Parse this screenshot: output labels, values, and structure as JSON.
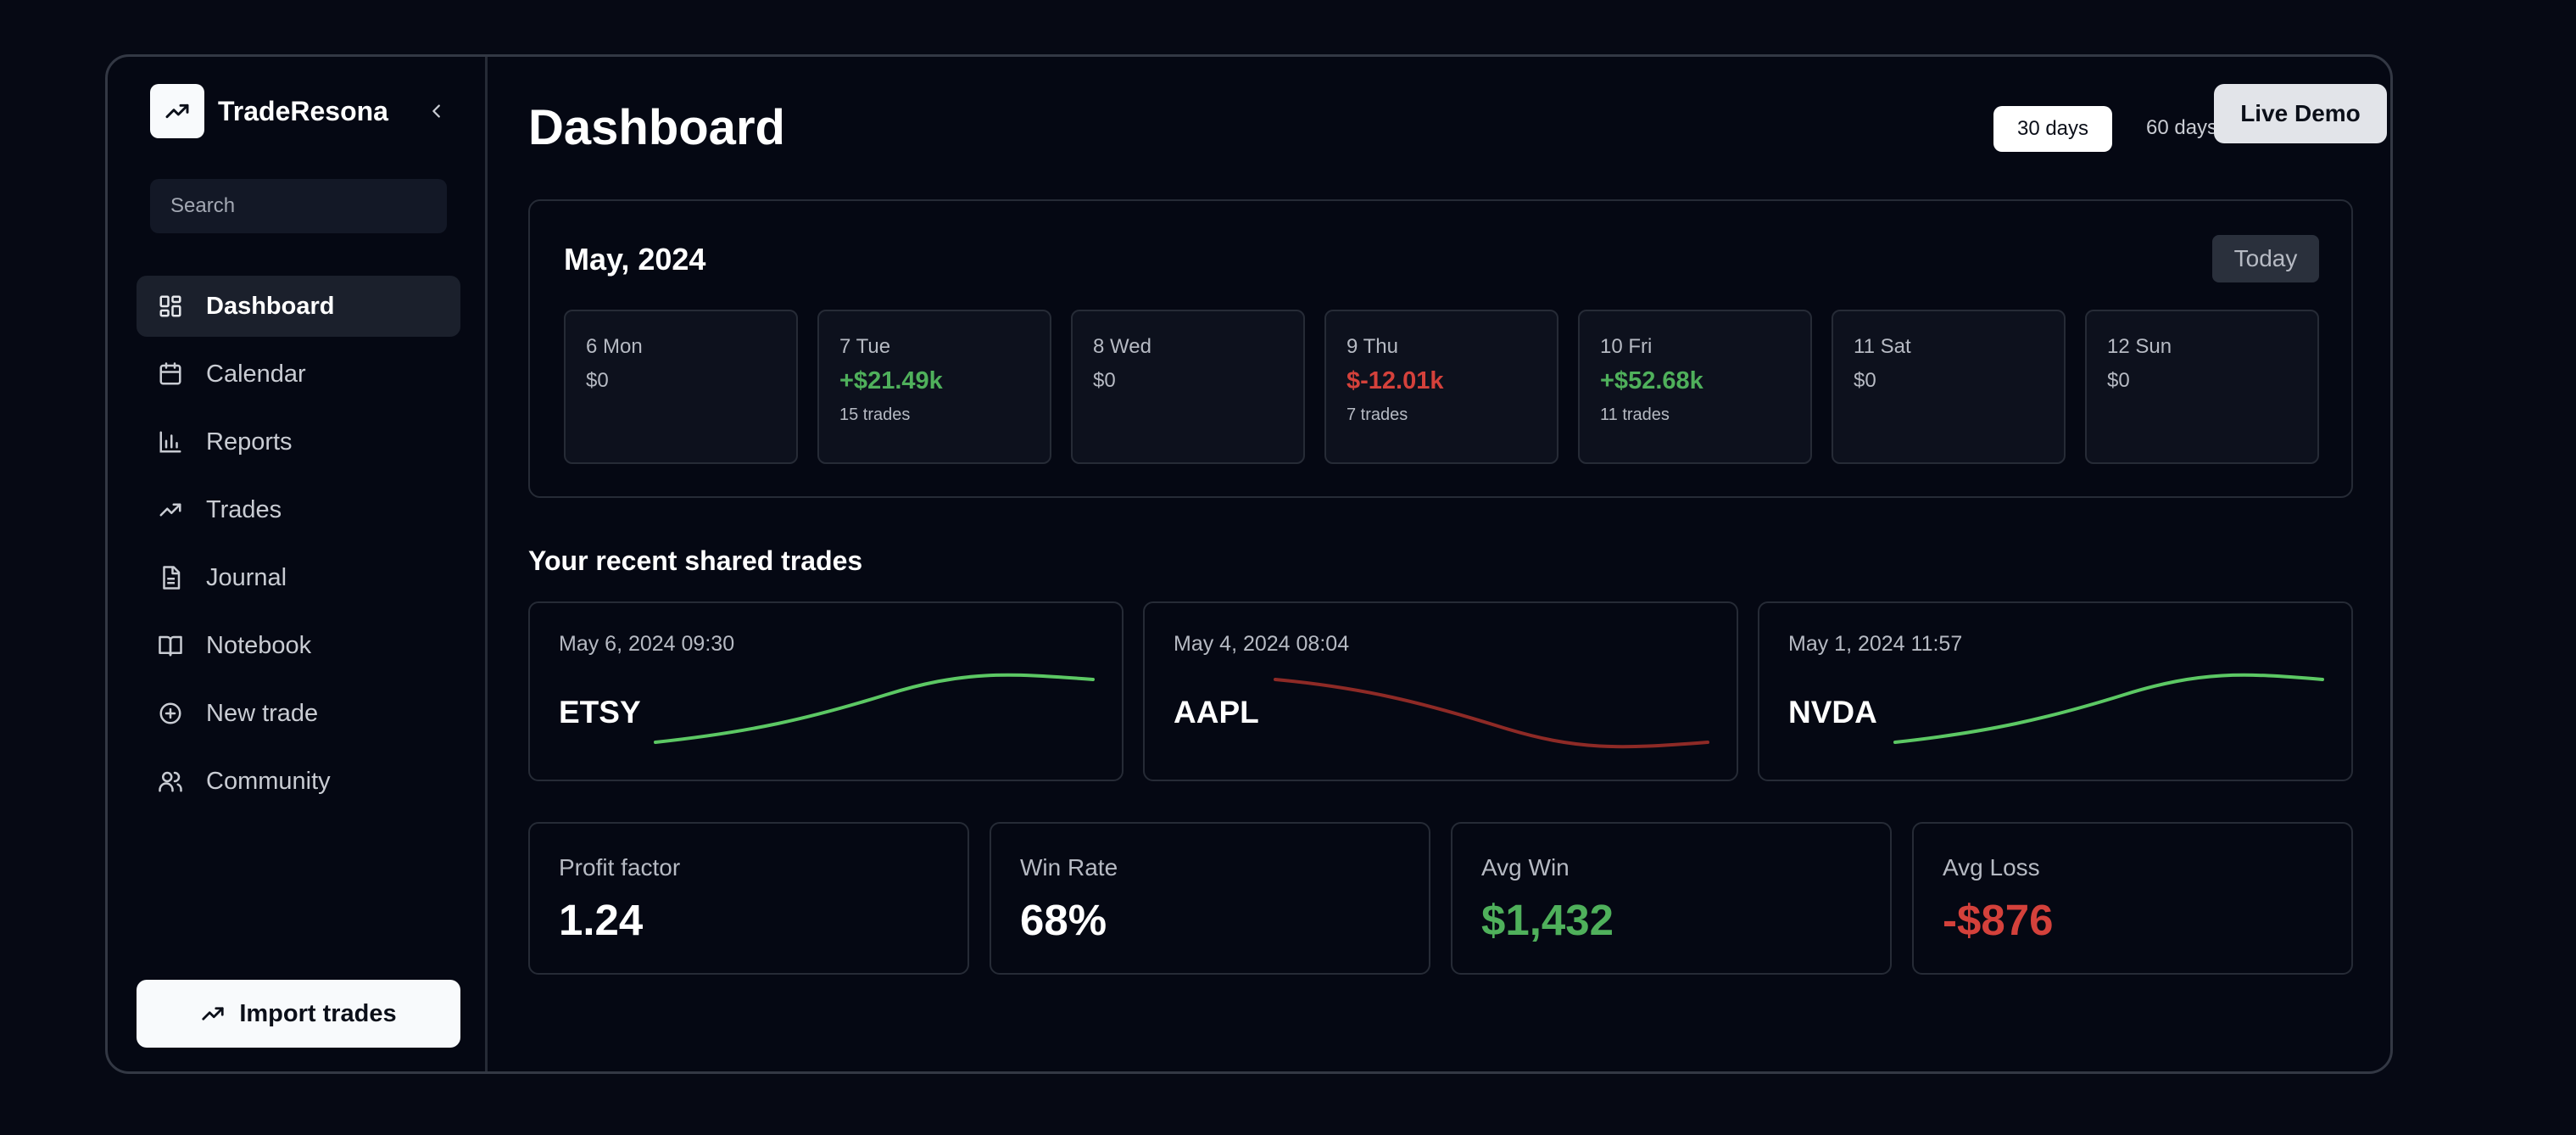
{
  "app": {
    "name": "TradeResona"
  },
  "search": {
    "placeholder": "Search"
  },
  "nav": [
    {
      "label": "Dashboard",
      "icon": "dashboard-icon",
      "active": true
    },
    {
      "label": "Calendar",
      "icon": "calendar-icon"
    },
    {
      "label": "Reports",
      "icon": "bar-chart-icon"
    },
    {
      "label": "Trades",
      "icon": "trend-up-icon"
    },
    {
      "label": "Journal",
      "icon": "document-icon"
    },
    {
      "label": "Notebook",
      "icon": "book-icon"
    },
    {
      "label": "New trade",
      "icon": "plus-circle-icon"
    },
    {
      "label": "Community",
      "icon": "users-icon"
    }
  ],
  "import_button": {
    "label": "Import trades"
  },
  "header": {
    "title": "Dashboard",
    "range_30": "30 days",
    "range_60": "60 days",
    "live_demo": "Live Demo"
  },
  "calendar": {
    "title": "May, 2024",
    "today_label": "Today",
    "days": [
      {
        "label": "6 Mon",
        "value": "$0",
        "trades": "",
        "status": "neutral"
      },
      {
        "label": "7 Tue",
        "value": "+$21.49k",
        "trades": "15 trades",
        "status": "positive"
      },
      {
        "label": "8 Wed",
        "value": "$0",
        "trades": "",
        "status": "neutral"
      },
      {
        "label": "9 Thu",
        "value": "$-12.01k",
        "trades": "7 trades",
        "status": "negative"
      },
      {
        "label": "10 Fri",
        "value": "+$52.68k",
        "trades": "11 trades",
        "status": "positive"
      },
      {
        "label": "11 Sat",
        "value": "$0",
        "trades": "",
        "status": "neutral"
      },
      {
        "label": "12 Sun",
        "value": "$0",
        "trades": "",
        "status": "neutral"
      }
    ]
  },
  "recent": {
    "title": "Your recent shared trades",
    "trades": [
      {
        "date": "May 6, 2024 09:30",
        "symbol": "ETSY",
        "trend": "up"
      },
      {
        "date": "May 4, 2024 08:04",
        "symbol": "AAPL",
        "trend": "down"
      },
      {
        "date": "May 1, 2024 11:57",
        "symbol": "NVDA",
        "trend": "up"
      }
    ]
  },
  "stats": [
    {
      "label": "Profit factor",
      "value": "1.24",
      "tone": "neutral"
    },
    {
      "label": "Win Rate",
      "value": "68%",
      "tone": "neutral"
    },
    {
      "label": "Avg Win",
      "value": "$1,432",
      "tone": "positive"
    },
    {
      "label": "Avg Loss",
      "value": "-$876",
      "tone": "negative"
    }
  ],
  "colors": {
    "positive": "#4fb05b",
    "negative": "#d4413b",
    "spark_up": "#5cc864",
    "spark_down": "#8e2a26"
  }
}
